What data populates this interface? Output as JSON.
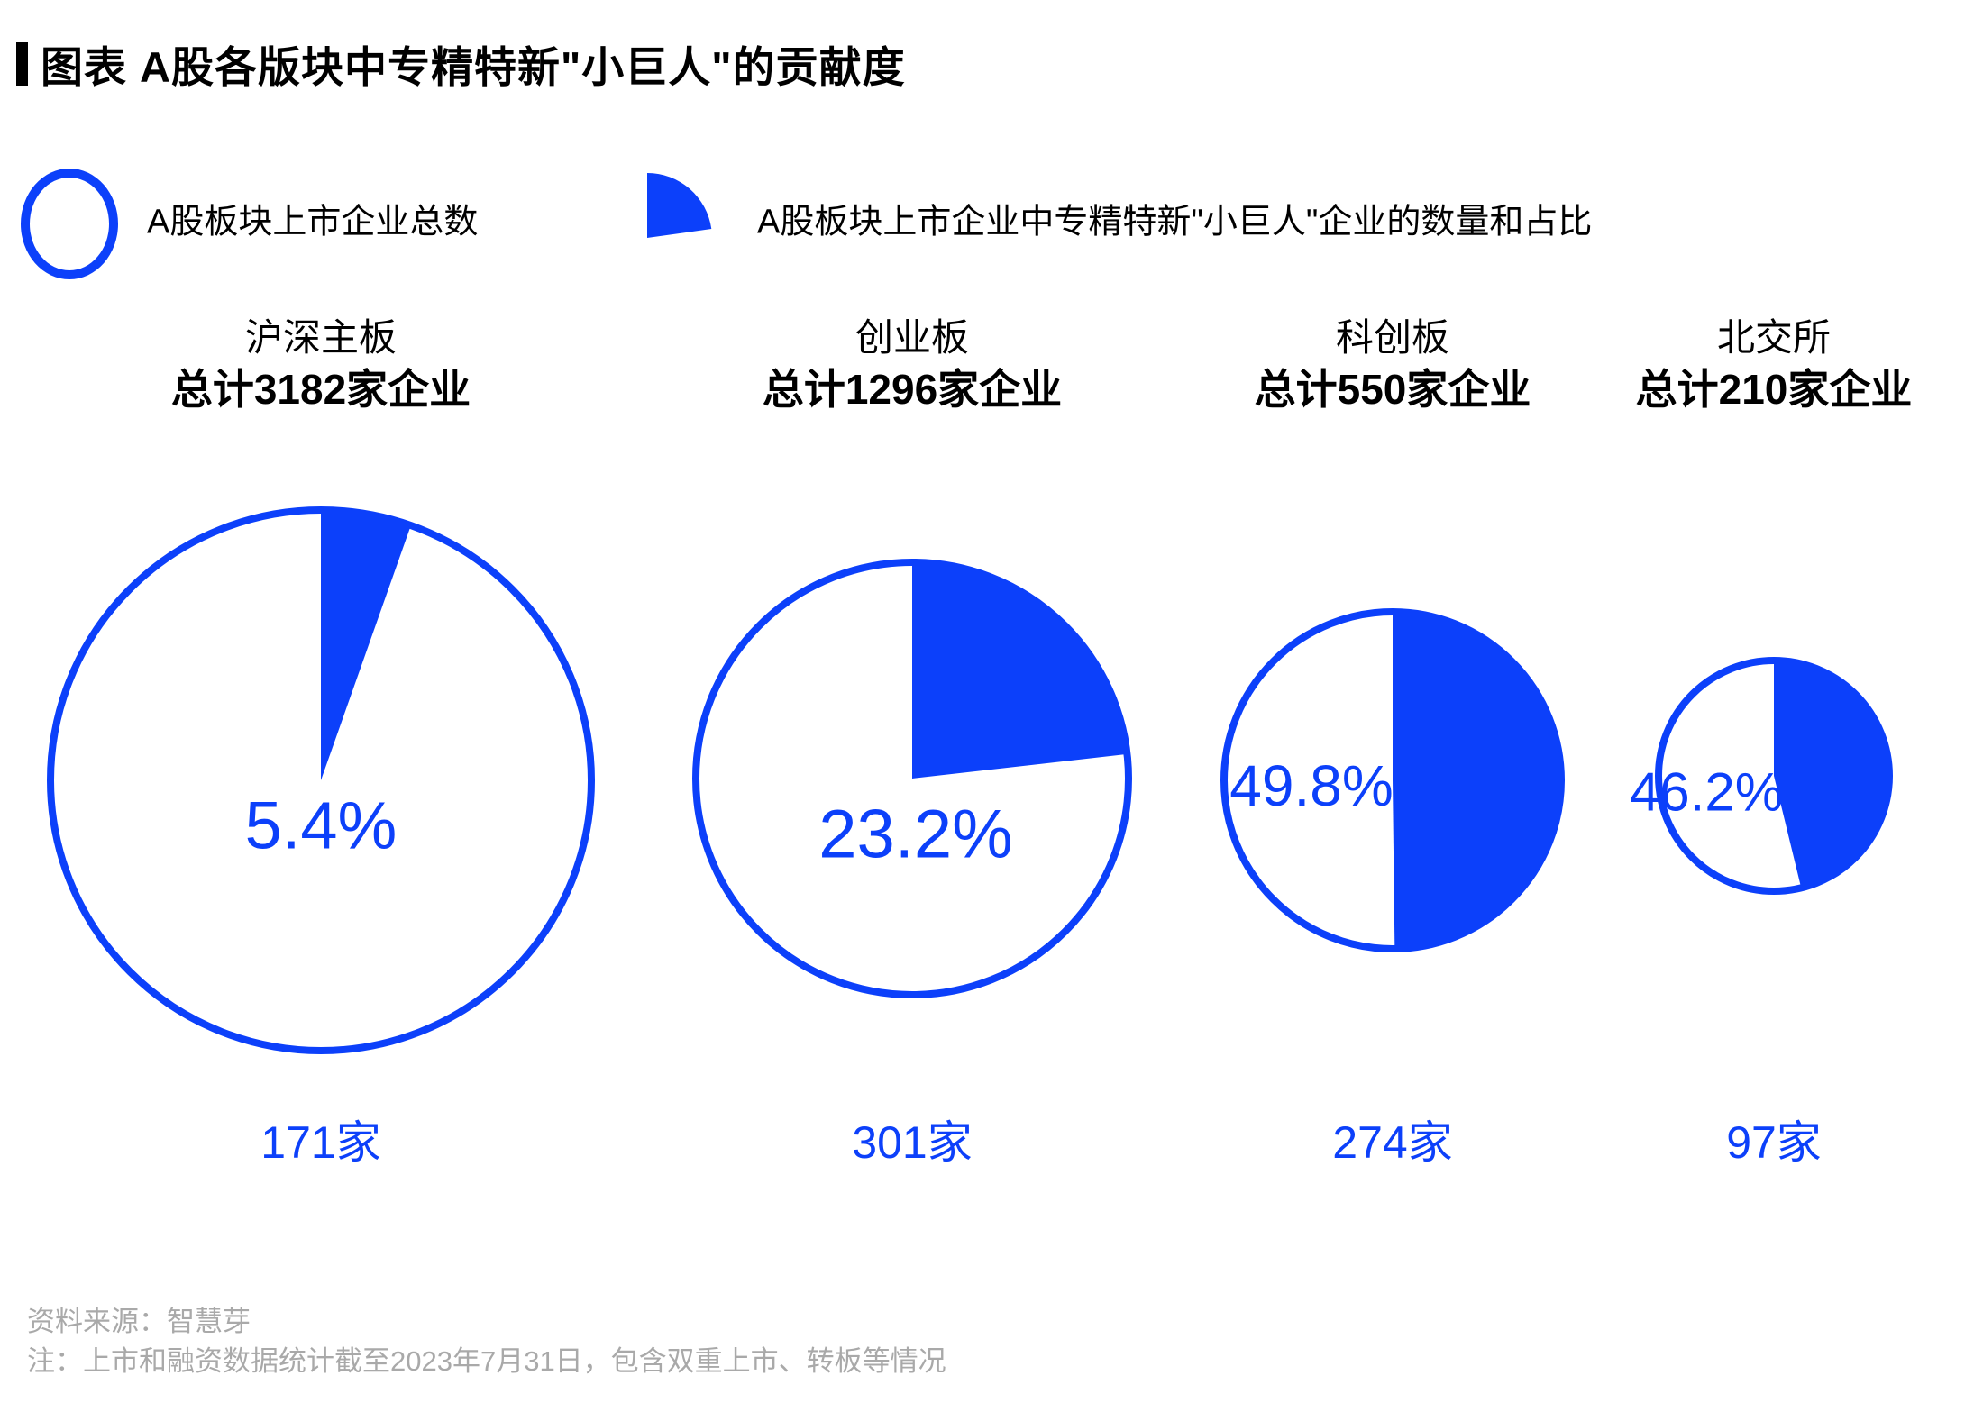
{
  "title": "图表 A股各版块中专精特新\"小巨人\"的贡献度",
  "legend": {
    "total": {
      "label": "A股板块上市企业总数"
    },
    "giant": {
      "label": "A股板块上市企业中专精特新\"小巨人\"企业的数量和占比"
    }
  },
  "colors": {
    "accent_blue": "#0c40fa",
    "footer_gray": "#a9a9a9",
    "text_black": "#000000"
  },
  "chart_data": {
    "type": "pie",
    "title": "A股各版块中专精特新\"小巨人\"的贡献度",
    "legend_position": "top",
    "grid": false,
    "pies": [
      {
        "board": "沪深主板",
        "total_label": "总计3182家企业",
        "total_companies": 3182,
        "giant_companies": 171,
        "giant_count_label": "171家",
        "giant_share_pct": 5.4,
        "percent_label": "5.4%",
        "radius_px": 300
      },
      {
        "board": "创业板",
        "total_label": "总计1296家企业",
        "total_companies": 1296,
        "giant_companies": 301,
        "giant_count_label": "301家",
        "giant_share_pct": 23.2,
        "percent_label": "23.2%",
        "radius_px": 240
      },
      {
        "board": "科创板",
        "total_label": "总计550家企业",
        "total_companies": 550,
        "giant_companies": 274,
        "giant_count_label": "274家",
        "giant_share_pct": 49.8,
        "percent_label": "49.8%",
        "radius_px": 187
      },
      {
        "board": "北交所",
        "total_label": "总计210家企业",
        "total_companies": 210,
        "giant_companies": 97,
        "giant_count_label": "97家",
        "giant_share_pct": 46.2,
        "percent_label": "46.2%",
        "radius_px": 128
      }
    ]
  },
  "footer": {
    "source": "资料来源：智慧芽",
    "note": "注：上市和融资数据统计截至2023年7月31日，包含双重上市、转板等情况"
  }
}
